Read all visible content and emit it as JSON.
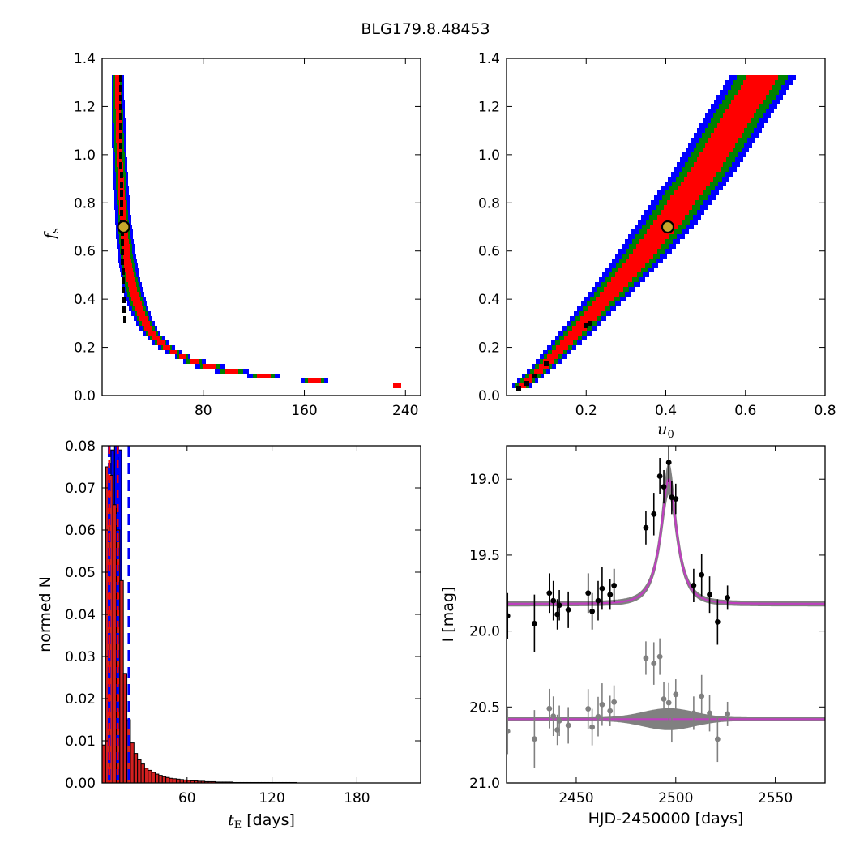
{
  "figure": {
    "title": "BLG179.8.48453"
  },
  "colors": {
    "sigma1": "#ff0000",
    "sigma2": "#008000",
    "sigma3": "#0000ff",
    "best": "#000000",
    "marker_face": "#c8a82c",
    "model": "#bf3fbf",
    "model_band": "#808080",
    "bar_face": "#d42020",
    "dash": "#0000ff"
  },
  "chart_data": [
    {
      "id": "tE_fs",
      "type": "heatmap",
      "description": "confidence regions of f_s vs t_E",
      "xlabel": "",
      "ylabel": "f_s",
      "ylabel_main": "f",
      "ylabel_sub": "s",
      "xlim": [
        0,
        252
      ],
      "ylim": [
        0,
        1.4
      ],
      "xticks": [
        80,
        160,
        240
      ],
      "xtick_labels": [
        "80",
        "160",
        "240"
      ],
      "yticks": [
        0.0,
        0.2,
        0.4,
        0.6,
        0.8,
        1.0,
        1.2,
        1.4
      ],
      "ytick_labels": [
        "0.0",
        "0.2",
        "0.4",
        "0.6",
        "0.8",
        "1.0",
        "1.2",
        "1.4"
      ],
      "marker": [
        17,
        0.7
      ],
      "regions": [
        {
          "name": "3 sigma",
          "level": 3,
          "half_width": [
            [
              0.03,
              2.2
            ],
            [
              0.1,
              6
            ],
            [
              0.4,
              8
            ],
            [
              0.8,
              6
            ],
            [
              1.33,
              5
            ]
          ]
        },
        {
          "name": "2 sigma",
          "level": 2,
          "half_width": [
            [
              0.03,
              1.5
            ],
            [
              0.1,
              4
            ],
            [
              0.4,
              5.5
            ],
            [
              0.8,
              4
            ],
            [
              1.33,
              3.5
            ]
          ]
        },
        {
          "name": "1 sigma",
          "level": 1,
          "half_width": [
            [
              0.03,
              1.0
            ],
            [
              0.1,
              2.5
            ],
            [
              0.4,
              3.5
            ],
            [
              0.8,
              2.5
            ],
            [
              1.33,
              2
            ]
          ]
        }
      ],
      "center": {
        "A": 6,
        "y0": 0.03,
        "x0": 8,
        "p": 1.3,
        "fs_min": 0.03,
        "fs_max": 1.33,
        "te_max": 230
      }
    },
    {
      "id": "u0_fs",
      "type": "heatmap",
      "description": "confidence regions of f_s vs u_0",
      "xlabel": "u_0",
      "xlabel_main": "u",
      "xlabel_sub": "0",
      "ylabel": "",
      "xlim": [
        0,
        0.8
      ],
      "ylim": [
        0,
        1.4
      ],
      "xticks": [
        0.2,
        0.4,
        0.6,
        0.8
      ],
      "xtick_labels": [
        "0.2",
        "0.4",
        "0.6",
        "0.8"
      ],
      "yticks": [
        0.0,
        0.2,
        0.4,
        0.6,
        0.8,
        1.0,
        1.2,
        1.4
      ],
      "ytick_labels": [
        "0.0",
        "0.2",
        "0.4",
        "0.6",
        "0.8",
        "1.0",
        "1.2",
        "1.4"
      ],
      "marker": [
        0.405,
        0.7
      ],
      "center_curve": [
        [
          0.04,
          0.03
        ],
        [
          0.1,
          0.12
        ],
        [
          0.2,
          0.3
        ],
        [
          0.3,
          0.49
        ],
        [
          0.4,
          0.7
        ],
        [
          0.5,
          0.93
        ],
        [
          0.6,
          1.2
        ],
        [
          0.65,
          1.33
        ]
      ],
      "regions": [
        {
          "name": "3 sigma",
          "level": 3,
          "half_width": [
            [
              0.03,
              0.025
            ],
            [
              0.3,
              0.045
            ],
            [
              0.7,
              0.075
            ],
            [
              1.33,
              0.085
            ]
          ]
        },
        {
          "name": "2 sigma",
          "level": 2,
          "half_width": [
            [
              0.03,
              0.017
            ],
            [
              0.3,
              0.032
            ],
            [
              0.7,
              0.055
            ],
            [
              1.33,
              0.065
            ]
          ]
        },
        {
          "name": "1 sigma",
          "level": 1,
          "half_width": [
            [
              0.03,
              0.009
            ],
            [
              0.3,
              0.02
            ],
            [
              0.7,
              0.035
            ],
            [
              1.33,
              0.04
            ]
          ]
        }
      ],
      "fs_min": 0.03,
      "fs_max": 1.33
    },
    {
      "id": "tE_hist",
      "type": "bar",
      "description": "normalized histogram of t_E",
      "xlabel": "t_E [days]",
      "xlabel_main": "t",
      "xlabel_sub": "E",
      "xlabel_unit": " [days]",
      "ylabel": "normed N",
      "xlim": [
        0,
        225
      ],
      "ylim": [
        0,
        0.08
      ],
      "xticks": [
        60,
        120,
        180
      ],
      "xtick_labels": [
        "60",
        "120",
        "180"
      ],
      "yticks": [
        0.0,
        0.01,
        0.02,
        0.03,
        0.04,
        0.05,
        0.06,
        0.07,
        0.08
      ],
      "ytick_labels": [
        "0.00",
        "0.01",
        "0.02",
        "0.03",
        "0.04",
        "0.05",
        "0.06",
        "0.07",
        "0.08"
      ],
      "bin_width": 2.5,
      "x": [
        1.25,
        3.75,
        6.25,
        8.75,
        11.25,
        13.75,
        16.25,
        18.75,
        21.25,
        23.75,
        26.25,
        28.75,
        31.25,
        33.75,
        36.25,
        38.75,
        41.25,
        43.75,
        46.25,
        48.75,
        51.25,
        53.75,
        56.25,
        58.75,
        61.25,
        63.75,
        66.25,
        68.75,
        71.25,
        73.75,
        76.25,
        78.75,
        81.25,
        83.75,
        86.25,
        88.75,
        91.25,
        93.75,
        96.25,
        98.75,
        101.25,
        103.75,
        106.25,
        108.75,
        111.25,
        113.75,
        116.25,
        118.75,
        121.25,
        123.75,
        126.25,
        128.75,
        131.25,
        133.75,
        136.25
      ],
      "values": [
        0.009,
        0.075,
        0.073,
        0.066,
        0.06,
        0.048,
        0.026,
        0.015,
        0.0095,
        0.007,
        0.0055,
        0.0045,
        0.0035,
        0.003,
        0.0025,
        0.0021,
        0.0018,
        0.0015,
        0.0013,
        0.0011,
        0.001,
        0.0009,
        0.0008,
        0.0007,
        0.0006,
        0.0005,
        0.0005,
        0.0004,
        0.0004,
        0.0003,
        0.0003,
        0.0003,
        0.0002,
        0.0002,
        0.0002,
        0.0002,
        0.0002,
        0.0001,
        0.0001,
        0.0001,
        0.0001,
        0.0001,
        0.0001,
        0.0001,
        0.0001,
        0.0001,
        0.0001,
        0.0001,
        0.0001,
        0.0001,
        0.0001,
        0.0001,
        0.0001,
        0.0001,
        0.0001
      ],
      "vlines_blue": [
        5,
        11,
        19
      ],
      "vlines_red": [
        5,
        11
      ],
      "overlay_blue_x": [
        7.5,
        10,
        12.5
      ],
      "overlay_blue_values": [
        0.079,
        0.08,
        0.079
      ]
    },
    {
      "id": "lightcurve",
      "type": "scatter",
      "description": "light curve with model and residuals",
      "xlabel": "HJD-2450000 [days]",
      "ylabel": "I [mag]",
      "xlim": [
        2415,
        2575
      ],
      "ylim": [
        21.0,
        18.78
      ],
      "xticks": [
        2450,
        2500,
        2550
      ],
      "xtick_labels": [
        "2450",
        "2500",
        "2550"
      ],
      "yticks": [
        19.0,
        19.5,
        20.0,
        20.5,
        21.0
      ],
      "ytick_labels": [
        "19.0",
        "19.5",
        "20.0",
        "20.5",
        "21.0"
      ],
      "model": {
        "t0": 2496.5,
        "tE": 8,
        "u0": 0.405,
        "fs": 0.7,
        "baseline": 19.82
      },
      "residual_baseline": 20.58,
      "points": [
        {
          "t": 2415.5,
          "mag": 19.9,
          "err": 0.15
        },
        {
          "t": 2429,
          "mag": 19.95,
          "err": 0.19
        },
        {
          "t": 2436.5,
          "mag": 19.75,
          "err": 0.13
        },
        {
          "t": 2438.5,
          "mag": 19.8,
          "err": 0.13
        },
        {
          "t": 2440.5,
          "mag": 19.89,
          "err": 0.1
        },
        {
          "t": 2441.5,
          "mag": 19.83,
          "err": 0.1
        },
        {
          "t": 2446,
          "mag": 19.86,
          "err": 0.12
        },
        {
          "t": 2456,
          "mag": 19.75,
          "err": 0.13
        },
        {
          "t": 2458,
          "mag": 19.87,
          "err": 0.12
        },
        {
          "t": 2461,
          "mag": 19.8,
          "err": 0.13
        },
        {
          "t": 2463,
          "mag": 19.72,
          "err": 0.14
        },
        {
          "t": 2467,
          "mag": 19.76,
          "err": 0.1
        },
        {
          "t": 2469,
          "mag": 19.7,
          "err": 0.11
        },
        {
          "t": 2485,
          "mag": 19.32,
          "err": 0.11
        },
        {
          "t": 2489,
          "mag": 19.23,
          "err": 0.14
        },
        {
          "t": 2492,
          "mag": 18.98,
          "err": 0.12
        },
        {
          "t": 2494,
          "mag": 19.05,
          "err": 0.11
        },
        {
          "t": 2496.5,
          "mag": 18.89,
          "err": 0.13
        },
        {
          "t": 2498,
          "mag": 19.12,
          "err": 0.11
        },
        {
          "t": 2500,
          "mag": 19.13,
          "err": 0.1
        },
        {
          "t": 2509,
          "mag": 19.7,
          "err": 0.11
        },
        {
          "t": 2513,
          "mag": 19.63,
          "err": 0.14
        },
        {
          "t": 2517,
          "mag": 19.76,
          "err": 0.12
        },
        {
          "t": 2521,
          "mag": 19.94,
          "err": 0.15
        },
        {
          "t": 2526,
          "mag": 19.78,
          "err": 0.08
        }
      ]
    }
  ]
}
